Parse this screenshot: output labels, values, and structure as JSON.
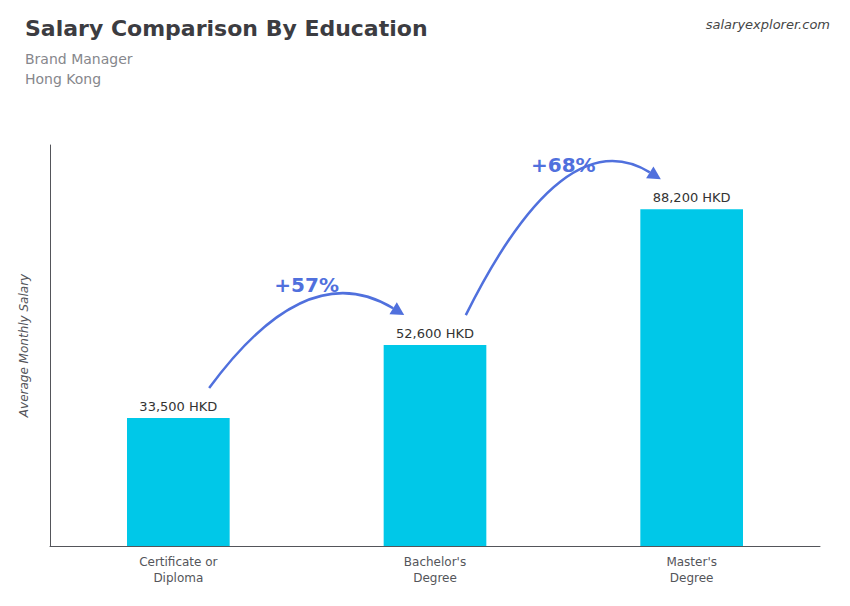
{
  "chart_data": {
    "type": "bar",
    "title": "Salary Comparison By Education",
    "subtitle": [
      "Brand Manager",
      "Hong Kong"
    ],
    "categories": [
      "Certificate or\nDiploma",
      "Bachelor's\nDegree",
      "Master's\nDegree"
    ],
    "values": [
      33500,
      52600,
      88200
    ],
    "value_labels": [
      "33,500 HKD",
      "52,600 HKD",
      "88,200 HKD"
    ],
    "data_labels": true,
    "color": "#00C8E8",
    "ylabel": "Average Monthly Salary",
    "annotations": [
      "+57%",
      "+68%"
    ],
    "source": "salaryexplorer.com",
    "ylim": [
      0,
      105000
    ],
    "yticks": [],
    "grid": false,
    "tick_labels": "x"
  }
}
